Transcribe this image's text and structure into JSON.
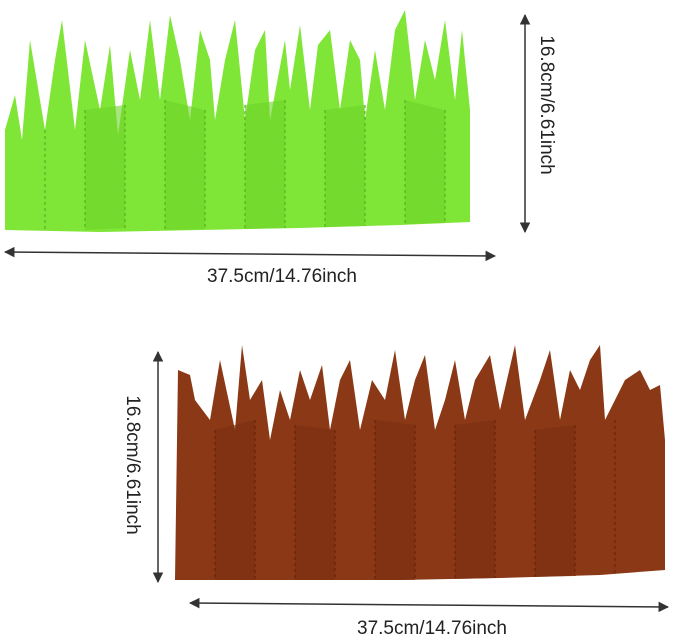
{
  "items": [
    {
      "width_label": "37.5cm/14.76inch",
      "height_label": "16.8cm/6.61inch"
    },
    {
      "width_label": "37.5cm/14.76inch",
      "height_label": "16.8cm/6.61inch"
    }
  ]
}
